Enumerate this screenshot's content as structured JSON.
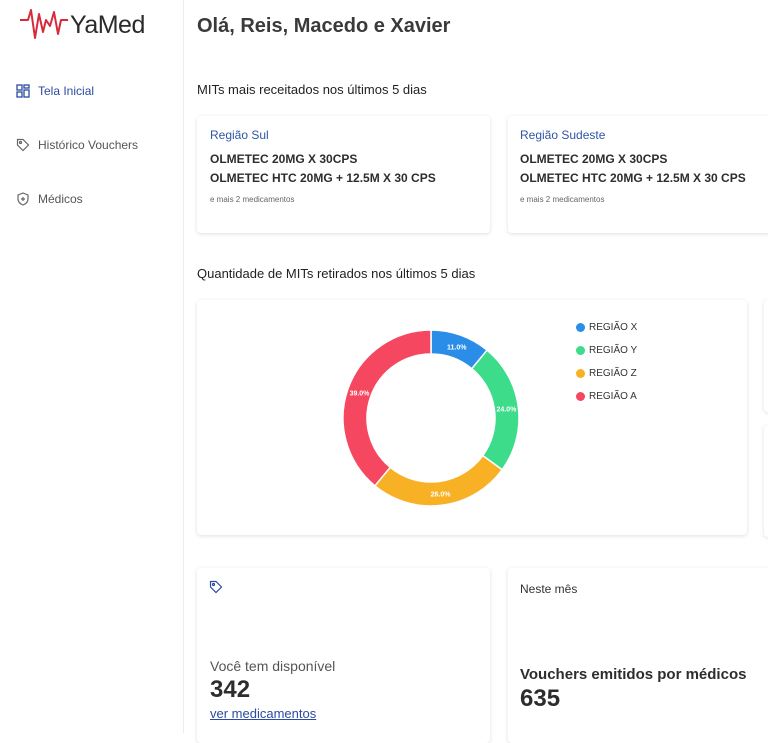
{
  "app": {
    "logo_text": "YaMed",
    "brand_color": "#d62b3a",
    "accent": "#2c4aa1"
  },
  "sidebar": {
    "items": [
      {
        "label": "Tela Inicial",
        "icon": "dashboard-icon",
        "active": true
      },
      {
        "label": "Histórico Vouchers",
        "icon": "tag-icon",
        "active": false
      },
      {
        "label": "Médicos",
        "icon": "shield-icon",
        "active": false
      }
    ]
  },
  "main": {
    "greeting": "Olá, Reis, Macedo e Xavier",
    "prescribed_title": "MITs mais receitados nos últimos 5 dias",
    "regions": [
      {
        "name": "Região Sul",
        "meds": [
          "OLMETEC 20MG X 30CPS",
          "OLMETEC HTC 20MG + 12.5M X 30 CPS"
        ],
        "more": "e mais 2 medicamentos"
      },
      {
        "name": "Região Sudeste",
        "meds": [
          "OLMETEC 20MG X 30CPS",
          "OLMETEC HTC 20MG + 12.5M X 30 CPS"
        ],
        "more": "e mais 2 medicamentos"
      }
    ],
    "withdrawn_title": "Quantidade de MITs retirados nos últimos 5 dias",
    "available": {
      "label": "Você tem disponível",
      "value": "342",
      "link": "ver medicamentos"
    },
    "vouchers": {
      "period": "Neste mês",
      "label": "Vouchers emitidos por médicos",
      "value": "635"
    }
  },
  "chart_data": {
    "type": "pie",
    "donut": true,
    "categories": [
      "REGIÃO X",
      "REGIÃO Y",
      "REGIÃO Z",
      "REGIÃO A"
    ],
    "values": [
      11.0,
      24.0,
      26.0,
      39.0
    ],
    "data_labels": [
      "11.0%",
      "24.0%",
      "26.0%",
      "39.0%"
    ],
    "colors": [
      "#2a8ee8",
      "#3ddc8a",
      "#f8b125",
      "#f5475f"
    ],
    "legend": "right"
  }
}
